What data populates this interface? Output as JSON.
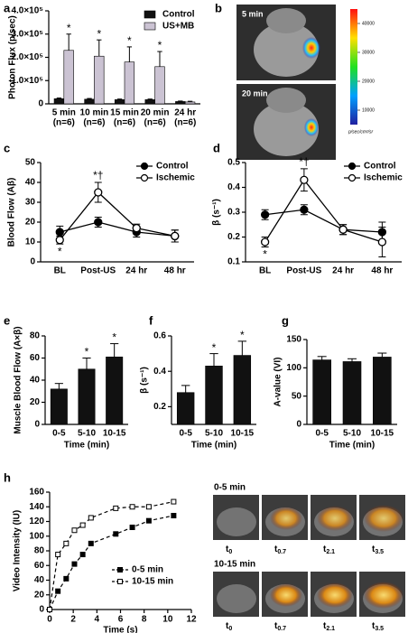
{
  "chart_data": [
    {
      "type": "bar",
      "label": "a",
      "ylabel": "Photon Flux (p/sec)",
      "categories": [
        "5 min",
        "10 min",
        "15 min",
        "20 min",
        "24 hr"
      ],
      "category_notes": [
        "(n=6)",
        "(n=6)",
        "(n=6)",
        "(n=6)",
        "(n=6)"
      ],
      "series": [
        {
          "name": "Control",
          "color": "#111111",
          "values": [
            22000,
            20000,
            18000,
            18000,
            10000
          ],
          "errors": [
            3000,
            3000,
            2500,
            2500,
            2000
          ]
        },
        {
          "name": "US+MB",
          "color": "#cbc3d3",
          "values": [
            230000,
            205000,
            180000,
            160000,
            8000
          ],
          "errors": [
            70000,
            70000,
            65000,
            65000,
            3000
          ],
          "annotations": [
            "*",
            "*",
            "*",
            "*",
            null
          ]
        }
      ],
      "ylim": [
        0,
        400000
      ],
      "yticks": [
        0,
        {
          "value": 100000,
          "label": "1.0×10⁵"
        },
        {
          "value": 200000,
          "label": "2.0×10⁵"
        },
        {
          "value": 300000,
          "label": "3.0×10⁵"
        },
        {
          "value": 400000,
          "label": "4.0×10⁵"
        }
      ],
      "legend": "upper right"
    },
    {
      "type": "image",
      "label": "b",
      "panels": [
        "5 min",
        "20 min"
      ],
      "colorbar_ticks": [
        40000,
        30000,
        20000,
        10000
      ],
      "clim": [
        5000,
        45000
      ],
      "colorbar_unit": "p/sec/cm²/sr"
    },
    {
      "type": "line",
      "label": "c",
      "ylabel": "Blood Flow (Aβ)",
      "categories": [
        "BL",
        "Post-US",
        "24 hr",
        "48 hr"
      ],
      "series": [
        {
          "name": "Control",
          "color": "#000000",
          "marker": "filled",
          "values": [
            15,
            20,
            15,
            13
          ],
          "errors": [
            3,
            2.5,
            2.5,
            3
          ]
        },
        {
          "name": "Ischemic",
          "color": "#000000",
          "marker": "open",
          "values": [
            11,
            35,
            17,
            13
          ],
          "errors": [
            2,
            5,
            2,
            3
          ],
          "annotations": [
            "*",
            "*†",
            null,
            null
          ]
        }
      ],
      "ylim": [
        0,
        50
      ],
      "yticks": [
        0,
        10,
        20,
        30,
        40,
        50
      ],
      "legend": "upper right"
    },
    {
      "type": "line",
      "label": "d",
      "ylabel": "β (s⁻¹)",
      "categories": [
        "BL",
        "Post-US",
        "24 hr",
        "48 hr"
      ],
      "series": [
        {
          "name": "Control",
          "color": "#000000",
          "marker": "filled",
          "values": [
            0.29,
            0.31,
            0.23,
            0.22
          ],
          "errors": [
            0.02,
            0.02,
            0.02,
            0.04
          ]
        },
        {
          "name": "Ischemic",
          "color": "#000000",
          "marker": "open",
          "values": [
            0.18,
            0.43,
            0.23,
            0.18
          ],
          "errors": [
            0.02,
            0.045,
            0.02,
            0.06
          ],
          "annotations": [
            "*",
            "*†",
            null,
            null
          ]
        }
      ],
      "ylim": [
        0.1,
        0.5
      ],
      "yticks": [
        0.1,
        0.2,
        0.3,
        0.4,
        0.5
      ],
      "legend": "upper right"
    },
    {
      "type": "bar",
      "label": "e",
      "ylabel": "Muscle Blood Flow (A×β)",
      "xlabel": "Time  (min)",
      "categories": [
        "0-5",
        "5-10",
        "10-15"
      ],
      "series": [
        {
          "color": "#111111",
          "values": [
            32,
            50,
            61
          ],
          "errors": [
            5,
            10,
            12
          ],
          "annotations": [
            null,
            "*",
            "*"
          ]
        }
      ],
      "ylim": [
        0,
        80
      ],
      "yticks": [
        0,
        20,
        40,
        60,
        80
      ]
    },
    {
      "type": "bar",
      "label": "f",
      "ylabel": "β (s⁻¹)",
      "xlabel": "Time  (min)",
      "categories": [
        "0-5",
        "5-10",
        "10-15"
      ],
      "series": [
        {
          "color": "#111111",
          "values": [
            0.28,
            0.43,
            0.49
          ],
          "errors": [
            0.04,
            0.07,
            0.08
          ],
          "annotations": [
            null,
            "*",
            "*"
          ]
        }
      ],
      "ylim": [
        0.1,
        0.6
      ],
      "yticks": [
        0.2,
        0.4,
        0.6
      ]
    },
    {
      "type": "bar",
      "label": "g",
      "ylabel": "A-value (VI)",
      "xlabel": "Time  (min)",
      "categories": [
        "0-5",
        "5-10",
        "10-15"
      ],
      "series": [
        {
          "color": "#111111",
          "values": [
            114,
            111,
            119
          ],
          "errors": [
            6,
            5,
            7
          ]
        }
      ],
      "ylim": [
        0,
        150
      ],
      "yticks": [
        0,
        50,
        100,
        150
      ]
    },
    {
      "type": "scatter",
      "label": "h",
      "ylabel": "Video Intensity (IU)",
      "xlabel": "Time (s)",
      "series": [
        {
          "name": "0-5 min",
          "color": "#000000",
          "marker": "filled",
          "x": [
            0,
            0.7,
            1.4,
            2.1,
            2.8,
            3.5,
            5.6,
            7.0,
            8.4,
            10.5
          ],
          "values": [
            0,
            25,
            42,
            62,
            75,
            90,
            103,
            112,
            121,
            128
          ]
        },
        {
          "name": "10-15 min",
          "color": "#000000",
          "marker": "open",
          "x": [
            0,
            0.7,
            1.4,
            2.1,
            2.8,
            3.5,
            5.6,
            7.0,
            8.4,
            10.5
          ],
          "values": [
            0,
            75,
            90,
            108,
            115,
            125,
            138,
            140,
            140,
            147
          ]
        }
      ],
      "xlim": [
        0,
        12
      ],
      "xticks": [
        0,
        2,
        4,
        6,
        8,
        10,
        12
      ],
      "ylim": [
        0,
        160
      ],
      "yticks": [
        0,
        20,
        40,
        60,
        80,
        100,
        120,
        140,
        160
      ],
      "legend": "lower right",
      "image_rows": [
        "0-5 min",
        "10-15 min"
      ],
      "frame_times": [
        {
          "base": "t",
          "sub": "0"
        },
        {
          "base": "t",
          "sub": "0.7"
        },
        {
          "base": "t",
          "sub": "2.1"
        },
        {
          "base": "t",
          "sub": "3.5"
        }
      ]
    }
  ]
}
